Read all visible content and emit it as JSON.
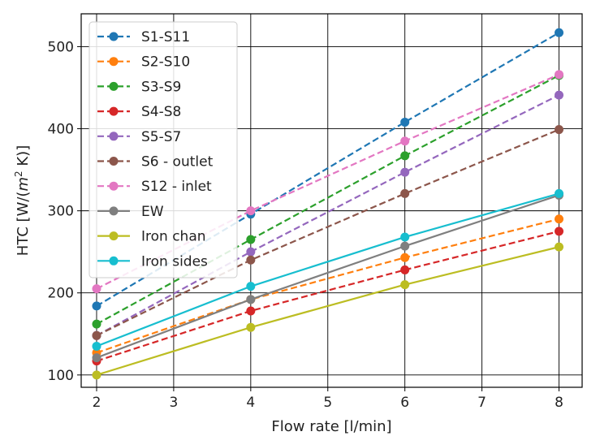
{
  "chart_data": {
    "type": "line",
    "title": "",
    "xlabel": "Flow rate [l/min]",
    "ylabel": "HTC [W/(m² K)]",
    "ylabel_parts": [
      "HTC [W/(",
      "m",
      "2",
      " K)]"
    ],
    "xlim": [
      1.8,
      8.3
    ],
    "ylim": [
      85,
      540
    ],
    "x_ticks": [
      2,
      3,
      4,
      5,
      6,
      7,
      8
    ],
    "y_ticks": [
      100,
      200,
      300,
      400,
      500
    ],
    "grid": true,
    "legend_position": "upper-left",
    "x": [
      2,
      4,
      6,
      8
    ],
    "series": [
      {
        "name": "S1-S11",
        "values": [
          184,
          296,
          408,
          517
        ],
        "color": "#1f77b4",
        "dashed": true
      },
      {
        "name": "S2-S10",
        "values": [
          127,
          192,
          243,
          290
        ],
        "color": "#ff7f0e",
        "dashed": true
      },
      {
        "name": "S3-S9",
        "values": [
          162,
          265,
          367,
          465
        ],
        "color": "#2ca02c",
        "dashed": true
      },
      {
        "name": "S4-S8",
        "values": [
          117,
          178,
          228,
          275
        ],
        "color": "#d62728",
        "dashed": true
      },
      {
        "name": "S5-S7",
        "values": [
          148,
          250,
          347,
          441
        ],
        "color": "#9467bd",
        "dashed": true
      },
      {
        "name": "S6 - outlet",
        "values": [
          148,
          240,
          321,
          399
        ],
        "color": "#8c564b",
        "dashed": true
      },
      {
        "name": "S12 - inlet",
        "values": [
          205,
          300,
          385,
          466
        ],
        "color": "#e377c2",
        "dashed": true
      },
      {
        "name": "EW",
        "values": [
          121,
          192,
          257,
          319
        ],
        "color": "#7f7f7f",
        "dashed": false
      },
      {
        "name": "Iron chan",
        "values": [
          100,
          158,
          210,
          256
        ],
        "color": "#bcbd22",
        "dashed": false
      },
      {
        "name": "Iron sides",
        "values": [
          135,
          208,
          268,
          321
        ],
        "color": "#17becf",
        "dashed": false
      }
    ]
  }
}
